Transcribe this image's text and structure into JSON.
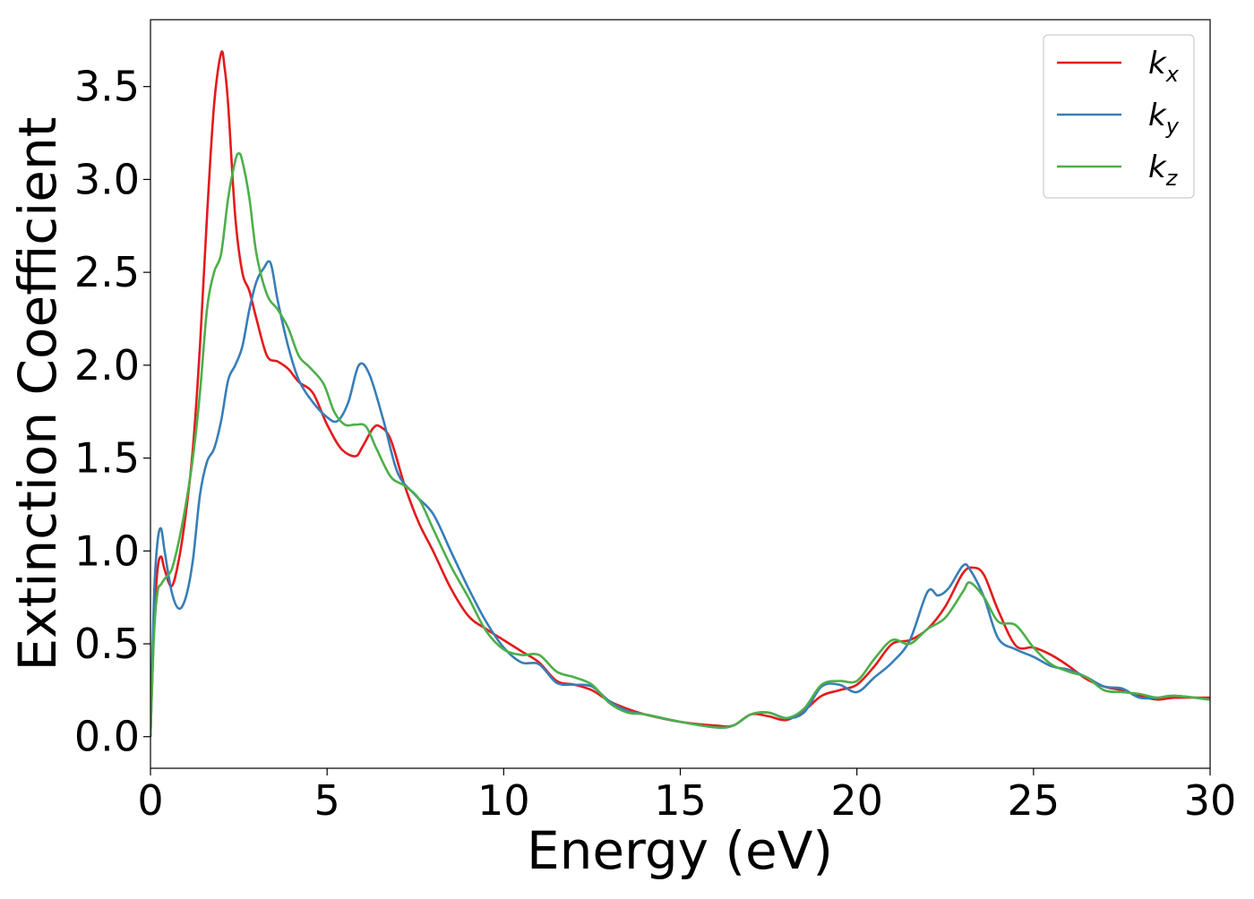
{
  "chart_data": {
    "type": "line",
    "xlabel": "Energy (eV)",
    "ylabel": "Extinction Coefficient",
    "xlim": [
      0,
      30
    ],
    "ylim": [
      -0.17,
      3.86
    ],
    "xticks": [
      0,
      5,
      10,
      15,
      20,
      25,
      30
    ],
    "xtick_labels": [
      "0",
      "5",
      "10",
      "15",
      "20",
      "25",
      "30"
    ],
    "yticks": [
      0.0,
      0.5,
      1.0,
      1.5,
      2.0,
      2.5,
      3.0,
      3.5
    ],
    "ytick_labels": [
      "0.0",
      "0.5",
      "1.0",
      "1.5",
      "2.0",
      "2.5",
      "3.0",
      "3.5"
    ],
    "grid": false,
    "legend_position": "top-right",
    "series": [
      {
        "name": "k_x",
        "label_main": "k",
        "label_sub": "x",
        "color": "#e41a1c",
        "x": [
          0,
          0.1,
          0.2,
          0.3,
          0.4,
          0.6,
          0.8,
          1.0,
          1.2,
          1.4,
          1.6,
          1.8,
          2.0,
          2.1,
          2.2,
          2.4,
          2.6,
          2.8,
          3.0,
          3.3,
          3.6,
          3.9,
          4.2,
          4.6,
          5.0,
          5.4,
          5.8,
          6.0,
          6.3,
          6.5,
          6.8,
          7.2,
          7.6,
          8.0,
          8.5,
          9.0,
          9.5,
          10.0,
          10.5,
          11.0,
          11.5,
          12.0,
          12.5,
          13.0,
          13.5,
          14.0,
          15.0,
          16.0,
          16.5,
          17.0,
          17.5,
          18.0,
          18.5,
          19.0,
          19.5,
          20.0,
          20.5,
          21.0,
          21.5,
          22.0,
          22.5,
          23.0,
          23.3,
          23.6,
          24.0,
          24.5,
          25.0,
          25.5,
          26.0,
          26.5,
          27.0,
          27.5,
          28.0,
          28.5,
          29.0,
          30.0
        ],
        "y": [
          0.0,
          0.6,
          0.9,
          0.97,
          0.9,
          0.81,
          0.95,
          1.2,
          1.55,
          2.1,
          2.8,
          3.4,
          3.68,
          3.6,
          3.4,
          2.8,
          2.5,
          2.4,
          2.25,
          2.05,
          2.02,
          1.98,
          1.91,
          1.85,
          1.68,
          1.55,
          1.51,
          1.56,
          1.66,
          1.67,
          1.6,
          1.35,
          1.15,
          1.0,
          0.8,
          0.65,
          0.58,
          0.52,
          0.46,
          0.4,
          0.3,
          0.28,
          0.25,
          0.19,
          0.15,
          0.12,
          0.08,
          0.06,
          0.06,
          0.12,
          0.11,
          0.09,
          0.14,
          0.22,
          0.25,
          0.28,
          0.38,
          0.5,
          0.52,
          0.58,
          0.7,
          0.88,
          0.91,
          0.87,
          0.68,
          0.49,
          0.48,
          0.44,
          0.38,
          0.31,
          0.27,
          0.25,
          0.22,
          0.2,
          0.21,
          0.21
        ]
      },
      {
        "name": "k_y",
        "label_main": "k",
        "label_sub": "y",
        "color": "#377eb8",
        "x": [
          0,
          0.1,
          0.2,
          0.3,
          0.4,
          0.6,
          0.8,
          1.0,
          1.2,
          1.4,
          1.6,
          1.8,
          2.0,
          2.2,
          2.4,
          2.6,
          2.8,
          3.0,
          3.2,
          3.4,
          3.6,
          3.9,
          4.2,
          4.6,
          5.0,
          5.3,
          5.6,
          5.9,
          6.2,
          6.6,
          7.0,
          7.5,
          8.0,
          8.5,
          9.0,
          9.5,
          10.0,
          10.5,
          11.0,
          11.5,
          12.0,
          12.5,
          13.0,
          13.5,
          14.0,
          15.0,
          16.0,
          16.5,
          17.0,
          17.5,
          18.0,
          18.5,
          19.0,
          19.5,
          20.0,
          20.5,
          21.0,
          21.5,
          22.0,
          22.3,
          22.6,
          23.0,
          23.2,
          23.6,
          24.0,
          24.5,
          25.0,
          25.5,
          26.0,
          26.5,
          27.0,
          27.5,
          28.0,
          28.5,
          29.0,
          30.0
        ],
        "y": [
          0.0,
          0.75,
          1.05,
          1.12,
          1.0,
          0.78,
          0.69,
          0.75,
          0.95,
          1.3,
          1.48,
          1.55,
          1.7,
          1.92,
          2.0,
          2.1,
          2.3,
          2.45,
          2.52,
          2.55,
          2.35,
          2.1,
          1.92,
          1.8,
          1.72,
          1.7,
          1.8,
          2.0,
          1.95,
          1.7,
          1.42,
          1.3,
          1.2,
          1.0,
          0.8,
          0.62,
          0.48,
          0.4,
          0.39,
          0.29,
          0.28,
          0.27,
          0.19,
          0.14,
          0.12,
          0.08,
          0.05,
          0.06,
          0.12,
          0.13,
          0.1,
          0.13,
          0.27,
          0.28,
          0.24,
          0.32,
          0.4,
          0.52,
          0.78,
          0.76,
          0.8,
          0.92,
          0.9,
          0.75,
          0.53,
          0.47,
          0.43,
          0.38,
          0.36,
          0.32,
          0.27,
          0.26,
          0.21,
          0.21,
          0.22,
          0.2
        ]
      },
      {
        "name": "k_z",
        "label_main": "k",
        "label_sub": "z",
        "color": "#4daf4a",
        "x": [
          0,
          0.1,
          0.2,
          0.3,
          0.4,
          0.6,
          0.8,
          1.0,
          1.2,
          1.4,
          1.6,
          1.8,
          2.0,
          2.2,
          2.4,
          2.5,
          2.6,
          2.8,
          3.0,
          3.3,
          3.6,
          3.9,
          4.2,
          4.5,
          4.9,
          5.2,
          5.5,
          5.8,
          6.1,
          6.4,
          6.8,
          7.2,
          7.6,
          8.0,
          8.5,
          9.0,
          9.5,
          10.0,
          10.5,
          11.0,
          11.5,
          12.0,
          12.5,
          13.0,
          13.5,
          14.0,
          15.0,
          16.0,
          16.5,
          17.0,
          17.5,
          18.0,
          18.5,
          19.0,
          19.5,
          20.0,
          20.5,
          21.0,
          21.5,
          22.0,
          22.5,
          23.0,
          23.2,
          23.6,
          24.0,
          24.5,
          25.0,
          25.5,
          26.0,
          26.5,
          27.0,
          27.5,
          28.0,
          28.5,
          29.0,
          30.0
        ],
        "y": [
          0.0,
          0.55,
          0.78,
          0.82,
          0.85,
          0.9,
          1.05,
          1.25,
          1.5,
          1.85,
          2.3,
          2.5,
          2.6,
          2.9,
          3.1,
          3.14,
          3.1,
          2.9,
          2.6,
          2.38,
          2.3,
          2.2,
          2.05,
          1.99,
          1.9,
          1.75,
          1.68,
          1.68,
          1.67,
          1.55,
          1.4,
          1.35,
          1.28,
          1.12,
          0.92,
          0.75,
          0.57,
          0.47,
          0.44,
          0.44,
          0.35,
          0.32,
          0.28,
          0.18,
          0.13,
          0.12,
          0.08,
          0.05,
          0.06,
          0.12,
          0.13,
          0.1,
          0.15,
          0.28,
          0.3,
          0.3,
          0.42,
          0.52,
          0.5,
          0.58,
          0.64,
          0.78,
          0.83,
          0.75,
          0.62,
          0.6,
          0.48,
          0.39,
          0.35,
          0.32,
          0.25,
          0.24,
          0.23,
          0.21,
          0.22,
          0.2
        ]
      }
    ]
  }
}
